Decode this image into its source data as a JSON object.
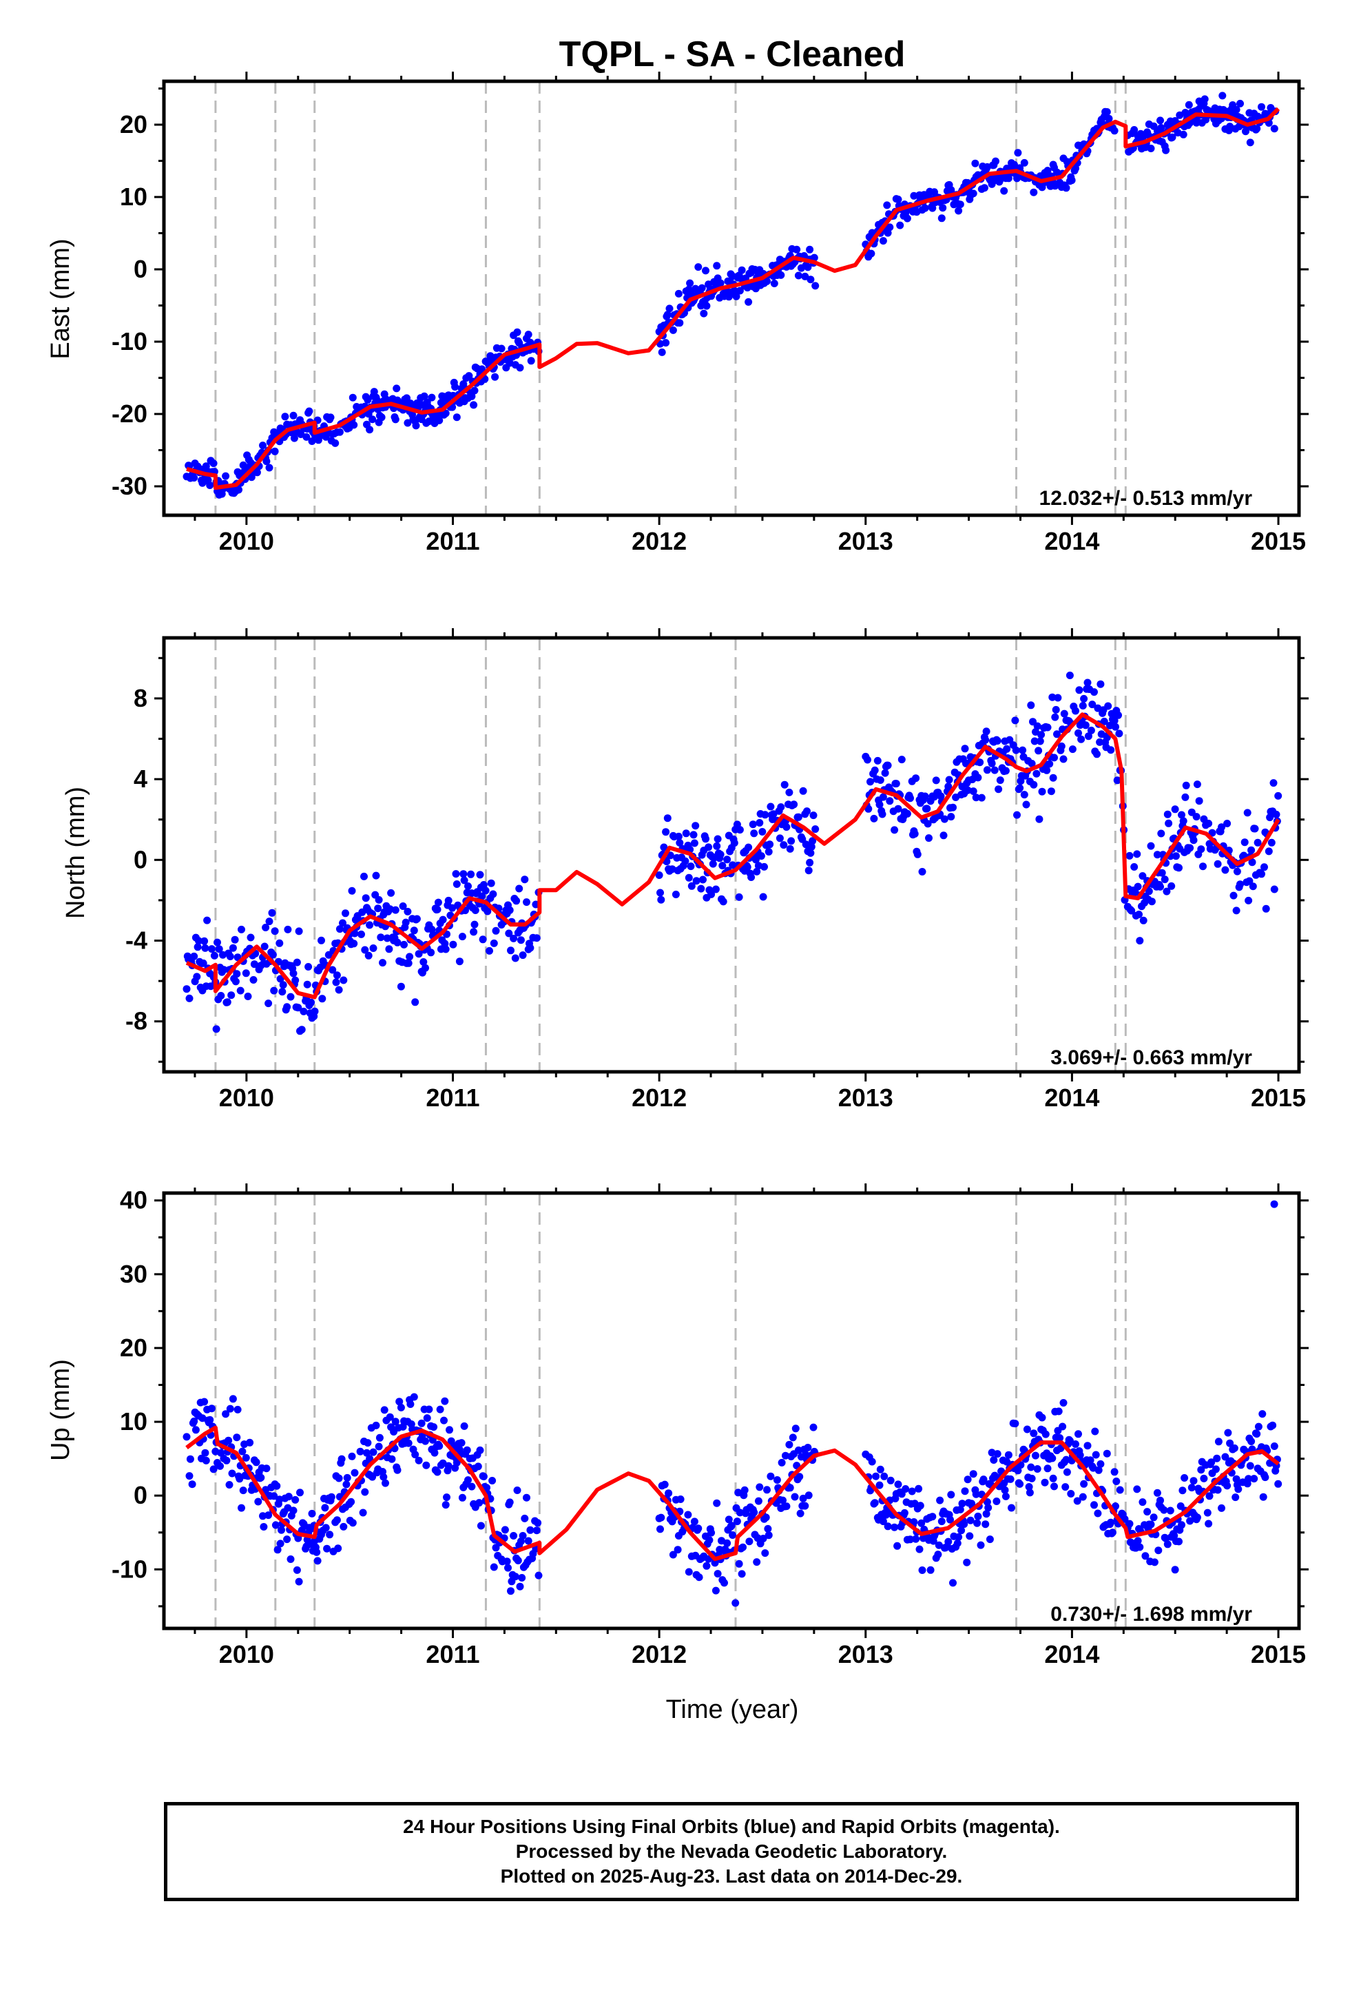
{
  "title": "TQPL  - SA - Cleaned",
  "colors": {
    "data": "#0000ff",
    "model": "#ff0000",
    "breaks": "#bbbbbb",
    "axes": "#000000"
  },
  "break_epochs": [
    2009.85,
    2010.14,
    2010.33,
    2011.16,
    2011.42,
    2012.37,
    2013.73,
    2014.21,
    2014.26
  ],
  "chart_data": [
    {
      "type": "scatter",
      "ylabel": "East (mm)",
      "xlabel": "",
      "xlim": [
        2009.6,
        2015.1
      ],
      "ylim": [
        -34,
        26
      ],
      "xticks": [
        "2010",
        "2011",
        "2012",
        "2013",
        "2014",
        "2015"
      ],
      "yticks": [
        "-30",
        "-20",
        "-10",
        "0",
        "10",
        "20"
      ],
      "rate": "12.032+/- 0.513 mm/yr",
      "series": [
        {
          "role": "data",
          "segments": [
            [
              2009.71,
              2011.42
            ],
            [
              2012.0,
              2012.76
            ],
            [
              2013.0,
              2014.21
            ],
            [
              2014.27,
              2015.0
            ]
          ],
          "seed": 11,
          "noise": 1.1
        },
        {
          "role": "model",
          "points": [
            [
              2009.71,
              -27.6
            ],
            [
              2009.8,
              -28.3
            ],
            [
              2009.85,
              -28.5
            ],
            [
              2009.85,
              -30.2
            ],
            [
              2009.95,
              -29.8
            ],
            [
              2010.05,
              -27
            ],
            [
              2010.14,
              -23.6
            ],
            [
              2010.2,
              -22.2
            ],
            [
              2010.33,
              -21.2
            ],
            [
              2010.33,
              -22.6
            ],
            [
              2010.45,
              -21.6
            ],
            [
              2010.6,
              -19
            ],
            [
              2010.7,
              -18.6
            ],
            [
              2010.85,
              -19.8
            ],
            [
              2010.95,
              -19.4
            ],
            [
              2011.1,
              -15.8
            ],
            [
              2011.16,
              -14.2
            ],
            [
              2011.25,
              -11.8
            ],
            [
              2011.35,
              -11
            ],
            [
              2011.42,
              -10.4
            ],
            [
              2011.42,
              -13.5
            ],
            [
              2011.5,
              -12.3
            ],
            [
              2011.6,
              -10.3
            ],
            [
              2011.7,
              -10.2
            ],
            [
              2011.85,
              -11.6
            ],
            [
              2011.95,
              -11.2
            ],
            [
              2012.05,
              -7.8
            ],
            [
              2012.15,
              -4.2
            ],
            [
              2012.3,
              -2.6
            ],
            [
              2012.37,
              -2.2
            ],
            [
              2012.5,
              -1.2
            ],
            [
              2012.65,
              1.6
            ],
            [
              2012.75,
              1
            ],
            [
              2012.85,
              -0.2
            ],
            [
              2012.95,
              0.6
            ],
            [
              2013.05,
              4.6
            ],
            [
              2013.15,
              8.2
            ],
            [
              2013.3,
              9.5
            ],
            [
              2013.45,
              10.5
            ],
            [
              2013.6,
              13.2
            ],
            [
              2013.73,
              13.6
            ],
            [
              2013.85,
              12.2
            ],
            [
              2013.95,
              12.8
            ],
            [
              2014.05,
              16.2
            ],
            [
              2014.15,
              19.6
            ],
            [
              2014.21,
              20.4
            ],
            [
              2014.26,
              19.8
            ],
            [
              2014.26,
              17
            ],
            [
              2014.35,
              17.6
            ],
            [
              2014.45,
              18.8
            ],
            [
              2014.6,
              21.4
            ],
            [
              2014.75,
              21.2
            ],
            [
              2014.85,
              20
            ],
            [
              2014.95,
              20.8
            ],
            [
              2015.0,
              22.2
            ]
          ]
        }
      ]
    },
    {
      "type": "scatter",
      "ylabel": "North (mm)",
      "xlabel": "",
      "xlim": [
        2009.6,
        2015.1
      ],
      "ylim": [
        -10.5,
        11
      ],
      "xticks": [
        "2010",
        "2011",
        "2012",
        "2013",
        "2014",
        "2015"
      ],
      "yticks": [
        "-8",
        "-4",
        "0",
        "4",
        "8"
      ],
      "rate": "3.069+/- 0.663 mm/yr",
      "series": [
        {
          "role": "data",
          "segments": [
            [
              2009.71,
              2011.42
            ],
            [
              2012.0,
              2012.76
            ],
            [
              2013.0,
              2014.26
            ],
            [
              2014.27,
              2015.0
            ]
          ],
          "seed": 23,
          "noise": 1.0
        },
        {
          "role": "model",
          "points": [
            [
              2009.71,
              -5.1
            ],
            [
              2009.8,
              -5.5
            ],
            [
              2009.85,
              -5.2
            ],
            [
              2009.85,
              -6.5
            ],
            [
              2009.95,
              -5.2
            ],
            [
              2010.05,
              -4.3
            ],
            [
              2010.14,
              -5.2
            ],
            [
              2010.25,
              -6.6
            ],
            [
              2010.33,
              -6.8
            ],
            [
              2010.4,
              -5.2
            ],
            [
              2010.5,
              -3.5
            ],
            [
              2010.6,
              -2.8
            ],
            [
              2010.7,
              -3.2
            ],
            [
              2010.85,
              -4.4
            ],
            [
              2010.95,
              -3.6
            ],
            [
              2011.08,
              -1.9
            ],
            [
              2011.16,
              -2.1
            ],
            [
              2011.28,
              -3.2
            ],
            [
              2011.35,
              -3.2
            ],
            [
              2011.42,
              -2.6
            ],
            [
              2011.42,
              -1.5
            ],
            [
              2011.5,
              -1.5
            ],
            [
              2011.6,
              -0.6
            ],
            [
              2011.7,
              -1.2
            ],
            [
              2011.82,
              -2.2
            ],
            [
              2011.95,
              -1.1
            ],
            [
              2012.05,
              0.6
            ],
            [
              2012.15,
              0.3
            ],
            [
              2012.27,
              -0.9
            ],
            [
              2012.37,
              -0.5
            ],
            [
              2012.47,
              0.5
            ],
            [
              2012.6,
              2.2
            ],
            [
              2012.7,
              1.6
            ],
            [
              2012.8,
              0.8
            ],
            [
              2012.95,
              2
            ],
            [
              2013.05,
              3.5
            ],
            [
              2013.15,
              3.2
            ],
            [
              2013.27,
              2.1
            ],
            [
              2013.35,
              2.4
            ],
            [
              2013.47,
              4.2
            ],
            [
              2013.58,
              5.6
            ],
            [
              2013.68,
              5
            ],
            [
              2013.73,
              4.6
            ],
            [
              2013.78,
              4.4
            ],
            [
              2013.85,
              4.7
            ],
            [
              2013.95,
              6.1
            ],
            [
              2014.05,
              7.2
            ],
            [
              2014.15,
              6.6
            ],
            [
              2014.21,
              6
            ],
            [
              2014.24,
              4.4
            ],
            [
              2014.26,
              -1.8
            ],
            [
              2014.32,
              -1.9
            ],
            [
              2014.42,
              -0.4
            ],
            [
              2014.55,
              1.6
            ],
            [
              2014.65,
              1.3
            ],
            [
              2014.8,
              -0.2
            ],
            [
              2014.9,
              0.3
            ],
            [
              2015.0,
              2
            ]
          ]
        }
      ]
    },
    {
      "type": "scatter",
      "ylabel": "Up (mm)",
      "xlabel": "Time (year)",
      "xlim": [
        2009.6,
        2015.1
      ],
      "ylim": [
        -18,
        41
      ],
      "xticks": [
        "2010",
        "2011",
        "2012",
        "2013",
        "2014",
        "2015"
      ],
      "yticks": [
        "-10",
        "0",
        "10",
        "20",
        "30",
        "40"
      ],
      "rate": "0.730+/- 1.698 mm/yr",
      "outliers": [
        [
          2014.98,
          39.5
        ]
      ],
      "series": [
        {
          "role": "data",
          "segments": [
            [
              2009.71,
              2011.42
            ],
            [
              2012.0,
              2012.76
            ],
            [
              2013.0,
              2014.26
            ],
            [
              2014.27,
              2015.0
            ]
          ],
          "seed": 37,
          "noise": 2.7
        },
        {
          "role": "model",
          "points": [
            [
              2009.71,
              6.5
            ],
            [
              2009.8,
              8.4
            ],
            [
              2009.85,
              9.2
            ],
            [
              2009.86,
              7
            ],
            [
              2009.95,
              5.8
            ],
            [
              2010.05,
              1.5
            ],
            [
              2010.14,
              -2.6
            ],
            [
              2010.25,
              -5.2
            ],
            [
              2010.33,
              -5.6
            ],
            [
              2010.34,
              -4
            ],
            [
              2010.45,
              -1.2
            ],
            [
              2010.6,
              4.2
            ],
            [
              2010.75,
              8
            ],
            [
              2010.85,
              8.8
            ],
            [
              2010.95,
              7.6
            ],
            [
              2011.08,
              3.6
            ],
            [
              2011.16,
              0
            ],
            [
              2011.2,
              -5.4
            ],
            [
              2011.3,
              -7.6
            ],
            [
              2011.42,
              -6.4
            ],
            [
              2011.42,
              -7.8
            ],
            [
              2011.55,
              -4.6
            ],
            [
              2011.7,
              0.8
            ],
            [
              2011.85,
              3
            ],
            [
              2011.95,
              2
            ],
            [
              2012.05,
              -1.2
            ],
            [
              2012.15,
              -5
            ],
            [
              2012.27,
              -8.6
            ],
            [
              2012.37,
              -7.8
            ],
            [
              2012.38,
              -5.6
            ],
            [
              2012.5,
              -2.4
            ],
            [
              2012.65,
              2.8
            ],
            [
              2012.75,
              5.4
            ],
            [
              2012.85,
              6.1
            ],
            [
              2012.95,
              4.2
            ],
            [
              2013.05,
              0.8
            ],
            [
              2013.15,
              -2.6
            ],
            [
              2013.27,
              -5.2
            ],
            [
              2013.4,
              -4.4
            ],
            [
              2013.55,
              -1.2
            ],
            [
              2013.7,
              3.8
            ],
            [
              2013.85,
              7.2
            ],
            [
              2013.95,
              7.2
            ],
            [
              2014.05,
              4
            ],
            [
              2014.15,
              0
            ],
            [
              2014.21,
              -2.6
            ],
            [
              2014.26,
              -4.4
            ],
            [
              2014.27,
              -5.6
            ],
            [
              2014.4,
              -4.8
            ],
            [
              2014.55,
              -2.2
            ],
            [
              2014.7,
              2
            ],
            [
              2014.85,
              5.6
            ],
            [
              2014.92,
              6
            ],
            [
              2015.0,
              4.3
            ]
          ]
        }
      ]
    }
  ],
  "caption": {
    "line1": "24 Hour Positions Using Final Orbits (blue) and Rapid Orbits (magenta).",
    "line2": "Processed by the Nevada Geodetic Laboratory.",
    "line3": "Plotted on 2025-Aug-23. Last data on 2014-Dec-29."
  }
}
